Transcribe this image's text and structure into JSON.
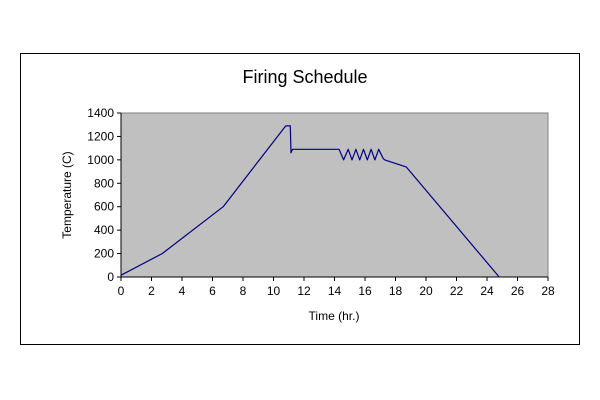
{
  "chart_data": {
    "type": "line",
    "title": "Firing Schedule",
    "xlabel": "Time (hr.)",
    "ylabel": "Temperature (C)",
    "xlim": [
      0,
      28
    ],
    "ylim": [
      0,
      1400
    ],
    "x_ticks": [
      0,
      2,
      4,
      6,
      8,
      10,
      12,
      14,
      16,
      18,
      20,
      22,
      24,
      26,
      28
    ],
    "y_ticks": [
      0,
      200,
      400,
      600,
      800,
      1000,
      1200,
      1400
    ],
    "grid": false,
    "legend": "none",
    "plot_background": "#c0c0c0",
    "series": [
      {
        "color": "#000080",
        "x": [
          0,
          2.7,
          6.7,
          10.8,
          11.1,
          11.15,
          11.25,
          14.3,
          14.6,
          14.9,
          15.15,
          15.4,
          15.65,
          15.9,
          16.15,
          16.4,
          16.65,
          16.9,
          17.2,
          17.3,
          18.7,
          24.8
        ],
        "y": [
          15,
          200,
          600,
          1290,
          1290,
          1060,
          1090,
          1090,
          1000,
          1090,
          1000,
          1090,
          1000,
          1090,
          1000,
          1090,
          1000,
          1090,
          1010,
          1000,
          940,
          0
        ]
      }
    ]
  }
}
